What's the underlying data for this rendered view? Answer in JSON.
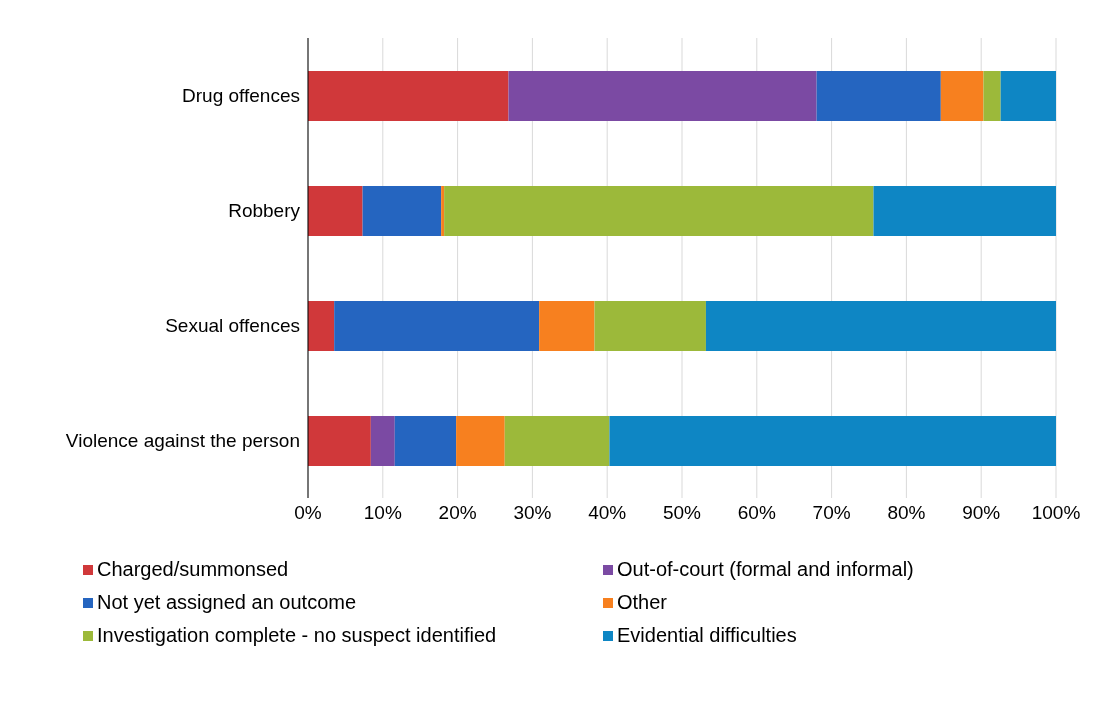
{
  "chart_data": {
    "type": "bar",
    "orientation": "horizontal",
    "stacked": true,
    "categories": [
      "Drug offences",
      "Robbery",
      "Sexual offences",
      "Violence against the person"
    ],
    "series": [
      {
        "name": "Charged/summonsed",
        "color": "#d0383a",
        "values": [
          26.8,
          7.3,
          3.5,
          8.4
        ]
      },
      {
        "name": "Out-of-court (formal and informal)",
        "color": "#7b4aa3",
        "values": [
          41.2,
          0,
          0,
          3.2
        ]
      },
      {
        "name": "Not yet assigned an outcome",
        "color": "#2565c0",
        "values": [
          16.6,
          10.5,
          27.4,
          8.2
        ]
      },
      {
        "name": "Other",
        "color": "#f7801f",
        "values": [
          5.7,
          0.4,
          7.4,
          6.5
        ]
      },
      {
        "name": "Investigation complete - no suspect identified",
        "color": "#9cb93a",
        "values": [
          2.3,
          57.4,
          14.9,
          14.0
        ]
      },
      {
        "name": "Evidential difficulties",
        "color": "#0e86c4",
        "values": [
          7.4,
          24.4,
          46.8,
          59.7
        ]
      }
    ],
    "xlim": [
      0,
      100
    ],
    "xticks": [
      {
        "value": 0,
        "label": "0%"
      },
      {
        "value": 10,
        "label": "10%"
      },
      {
        "value": 20,
        "label": "20%"
      },
      {
        "value": 30,
        "label": "30%"
      },
      {
        "value": 40,
        "label": "40%"
      },
      {
        "value": 50,
        "label": "50%"
      },
      {
        "value": 60,
        "label": "60%"
      },
      {
        "value": 70,
        "label": "70%"
      },
      {
        "value": 80,
        "label": "80%"
      },
      {
        "value": 90,
        "label": "90%"
      },
      {
        "value": 100,
        "label": "100%"
      }
    ],
    "grid": "x",
    "legend": "bottom"
  }
}
